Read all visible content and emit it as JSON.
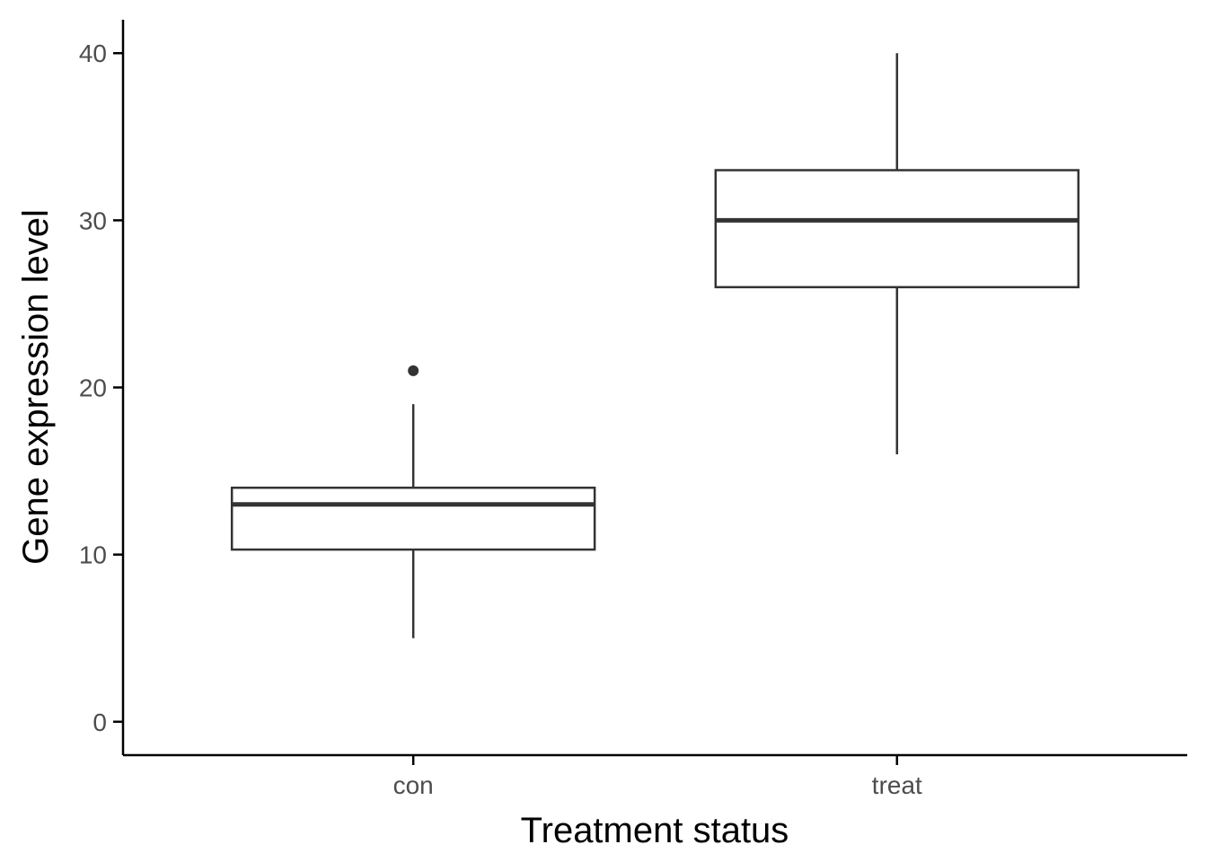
{
  "chart_data": {
    "type": "boxplot",
    "title": "",
    "xlabel": "Treatment status",
    "ylabel": "Gene expression level",
    "categories": [
      "con",
      "treat"
    ],
    "ylim": [
      -2,
      42
    ],
    "yticks": [
      0,
      10,
      20,
      30,
      40
    ],
    "ytick_labels": [
      "0",
      "10",
      "20",
      "30",
      "40"
    ],
    "grid": false,
    "legend": "none",
    "boxes": [
      {
        "category": "con",
        "whisker_low": 5,
        "q1": 10.3,
        "median": 13,
        "q3": 14,
        "whisker_high": 19,
        "outliers": [
          21
        ]
      },
      {
        "category": "treat",
        "whisker_low": 16,
        "q1": 26,
        "median": 30,
        "q3": 33,
        "whisker_high": 40,
        "outliers": []
      }
    ],
    "colors": {
      "stroke": "#333333",
      "axis": "#000000",
      "fill": "#ffffff",
      "tick_text": "#4d4d4d"
    }
  }
}
